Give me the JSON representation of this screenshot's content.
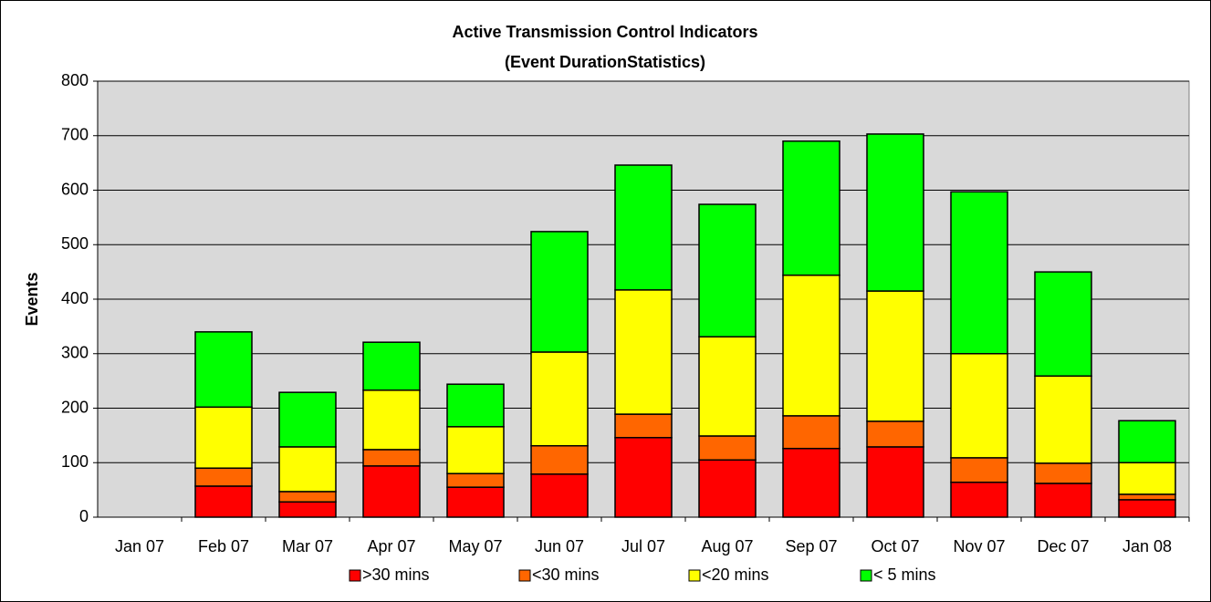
{
  "chart_data": {
    "type": "stacked-bar",
    "title": "Active Transmission Control Indicators",
    "subtitle": "(Event DurationStatistics)",
    "y_label": "Events",
    "categories": [
      "Jan 07",
      "Feb 07",
      "Mar 07",
      "Apr 07",
      "May 07",
      "Jun 07",
      "Jul 07",
      "Aug 07",
      "Sep 07",
      "Oct 07",
      "Nov 07",
      "Dec 07",
      "Jan 08"
    ],
    "series": [
      {
        "name": ">30 mins",
        "color": "#ff0000",
        "values": [
          0,
          57,
          28,
          94,
          55,
          79,
          146,
          105,
          126,
          129,
          64,
          62,
          32
        ]
      },
      {
        "name": "<30 mins",
        "color": "#ff6600",
        "values": [
          0,
          33,
          19,
          30,
          25,
          52,
          43,
          44,
          60,
          47,
          45,
          37,
          10
        ]
      },
      {
        "name": "<20 mins",
        "color": "#ffff00",
        "values": [
          0,
          112,
          82,
          109,
          86,
          172,
          228,
          182,
          258,
          239,
          191,
          160,
          58
        ]
      },
      {
        "name": "< 5 mins",
        "color": "#00ff00",
        "values": [
          0,
          138,
          100,
          88,
          78,
          221,
          229,
          243,
          246,
          288,
          297,
          191,
          77
        ]
      }
    ],
    "ylim": [
      0,
      800
    ],
    "yticks": [
      0,
      100,
      200,
      300,
      400,
      500,
      600,
      700,
      800
    ],
    "grid": true
  }
}
